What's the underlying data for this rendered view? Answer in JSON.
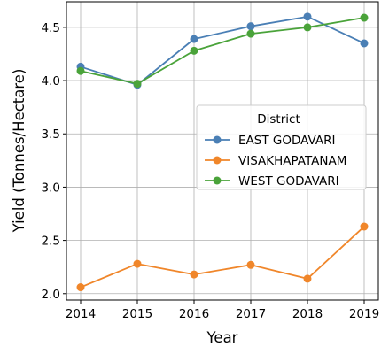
{
  "chart_data": {
    "type": "line",
    "title": "",
    "xlabel": "Year",
    "ylabel": "Yield (Tonnes/Hectare)",
    "x": [
      2014,
      2015,
      2016,
      2017,
      2018,
      2019
    ],
    "xticks": [
      "2014",
      "2015",
      "2016",
      "2017",
      "2018",
      "2019"
    ],
    "yticks": [
      "2.0",
      "2.5",
      "3.0",
      "3.5",
      "4.0",
      "4.5"
    ],
    "ylim": [
      1.94,
      4.74
    ],
    "grid": true,
    "legend": {
      "title": "District",
      "placement": "center-right"
    },
    "series": [
      {
        "name": "EAST GODAVARI",
        "color": "#4a7fb5",
        "values": [
          4.13,
          3.96,
          4.39,
          4.51,
          4.6,
          4.35
        ]
      },
      {
        "name": "VISAKHAPATANAM",
        "color": "#f0862a",
        "values": [
          2.06,
          2.28,
          2.18,
          2.27,
          2.14,
          2.63
        ]
      },
      {
        "name": "WEST GODAVARI",
        "color": "#4aa33a",
        "values": [
          4.09,
          3.97,
          4.28,
          4.44,
          4.5,
          4.59
        ]
      }
    ]
  }
}
